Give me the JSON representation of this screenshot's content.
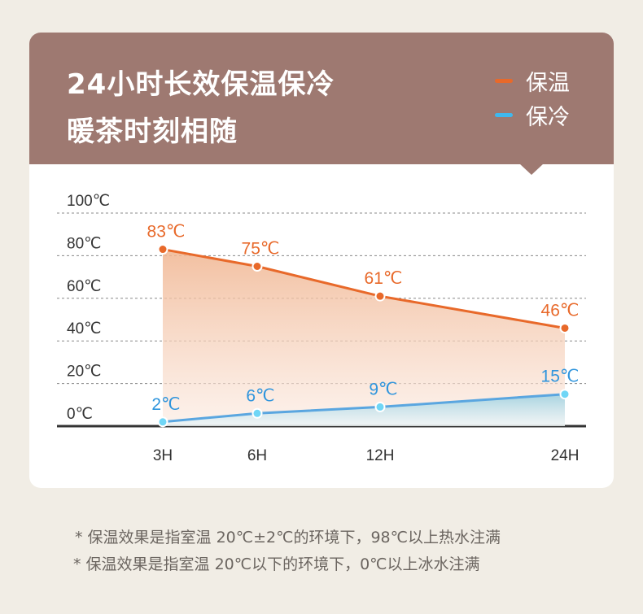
{
  "header": {
    "title_line1": "24小时长效保温保冷",
    "title_line2": "暖茶时刻相随",
    "legend": [
      {
        "label": "保温",
        "color": "#e8692a"
      },
      {
        "label": "保冷",
        "color": "#3fb8ee"
      }
    ]
  },
  "chart_data": {
    "type": "line",
    "categories": [
      "3H",
      "6H",
      "12H",
      "24H"
    ],
    "series": [
      {
        "name": "保温",
        "values": [
          83,
          75,
          61,
          46
        ],
        "labels": [
          "83℃",
          "75℃",
          "61℃",
          "46℃"
        ],
        "color": "#e8692a"
      },
      {
        "name": "保冷",
        "values": [
          2,
          6,
          9,
          15
        ],
        "labels": [
          "2℃",
          "6℃",
          "9℃",
          "15℃"
        ],
        "color": "#2f95dd"
      }
    ],
    "yticks": [
      0,
      20,
      40,
      60,
      80,
      100
    ],
    "ytick_labels": [
      "0℃",
      "20℃",
      "40℃",
      "60℃",
      "80℃",
      "100℃"
    ],
    "ylim": [
      0,
      100
    ],
    "grid": true,
    "legend_position": "top-right"
  },
  "footnotes": [
    "* 保温效果是指室温 20℃±2℃的环境下，98℃以上热水注满",
    "* 保温效果是指室温 20℃以下的环境下，0℃以上冰水注满"
  ]
}
